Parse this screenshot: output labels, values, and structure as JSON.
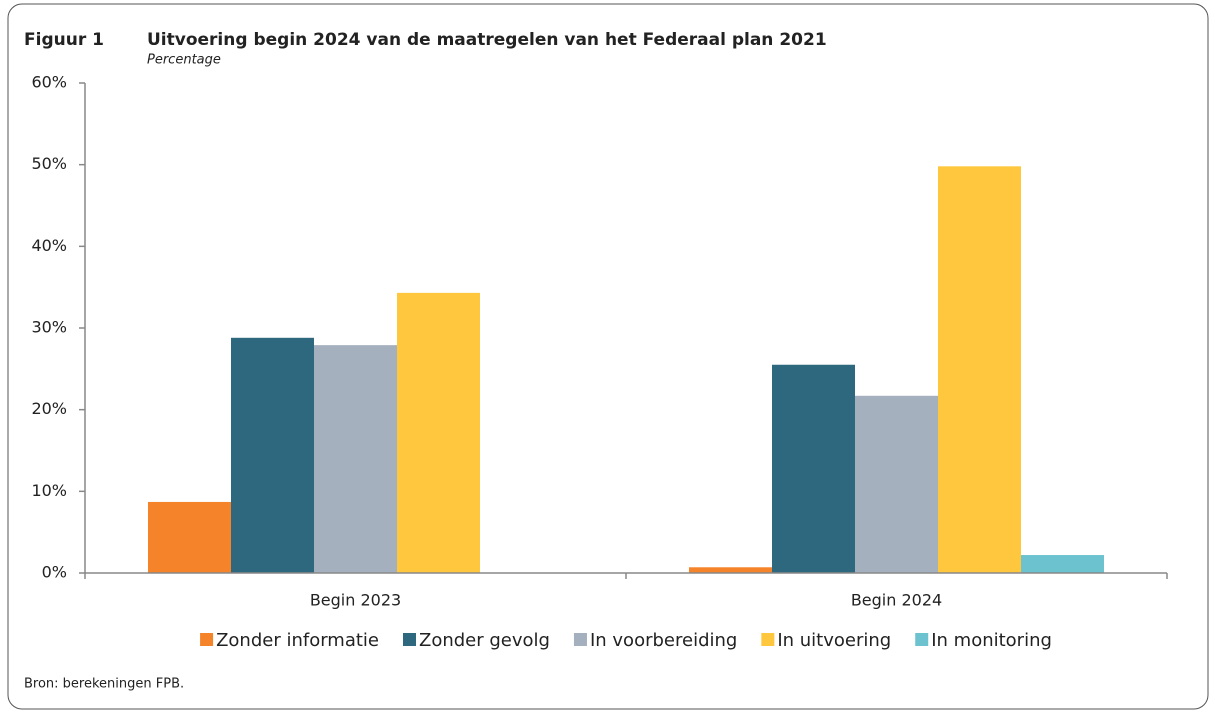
{
  "chart_data": {
    "type": "bar",
    "figure_label": "Figuur 1",
    "title": "Uitvoering begin 2024 van de maatregelen van het Federaal plan 2021",
    "subtitle": "Percentage",
    "source": "Bron: berekeningen FPB.",
    "categories": [
      "Begin 2023",
      "Begin 2024"
    ],
    "series": [
      {
        "name": "Zonder informatie",
        "color": "#f4832a",
        "values": [
          8.7,
          0.7
        ]
      },
      {
        "name": "Zonder gevolg",
        "color": "#2e687e",
        "values": [
          28.8,
          25.5
        ]
      },
      {
        "name": "In voorbereiding",
        "color": "#a5b0be",
        "values": [
          27.9,
          21.7
        ]
      },
      {
        "name": "In uitvoering",
        "color": "#ffc73e",
        "values": [
          34.3,
          49.8
        ]
      },
      {
        "name": "In monitoring",
        "color": "#6cc3cf",
        "values": [
          0,
          2.2
        ]
      }
    ],
    "ylim": [
      0,
      60
    ],
    "yticks": [
      {
        "value": 0,
        "label": "0%"
      },
      {
        "value": 10,
        "label": "10%"
      },
      {
        "value": 20,
        "label": "20%"
      },
      {
        "value": 30,
        "label": "30%"
      },
      {
        "value": 40,
        "label": "40%"
      },
      {
        "value": 50,
        "label": "50%"
      },
      {
        "value": 60,
        "label": "60%"
      }
    ],
    "legend": "bottom"
  }
}
